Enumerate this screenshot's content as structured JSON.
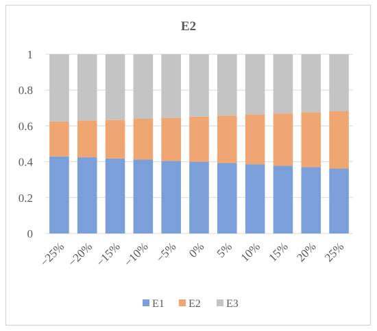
{
  "chart_data": {
    "type": "bar",
    "stacked": true,
    "title": "E2",
    "categories": [
      "−25%",
      "−20%",
      "−15%",
      "−10%",
      "−5%",
      "0%",
      "5%",
      "10%",
      "15%",
      "20%",
      "25%"
    ],
    "series": [
      {
        "name": "E1",
        "color": "#7b9fd8",
        "values": [
          0.43,
          0.425,
          0.418,
          0.412,
          0.405,
          0.4,
          0.393,
          0.386,
          0.378,
          0.37,
          0.362
        ]
      },
      {
        "name": "E2",
        "color": "#f0a673",
        "values": [
          0.195,
          0.205,
          0.215,
          0.228,
          0.24,
          0.252,
          0.265,
          0.278,
          0.292,
          0.306,
          0.32
        ]
      },
      {
        "name": "E3",
        "color": "#c4c4c4",
        "values": [
          0.375,
          0.37,
          0.367,
          0.36,
          0.355,
          0.348,
          0.342,
          0.336,
          0.33,
          0.324,
          0.318
        ]
      }
    ],
    "ylim": [
      0,
      1
    ],
    "yticks": [
      "0",
      "0.2",
      "0.4",
      "0.6",
      "0.8",
      "1"
    ],
    "ytick_values": [
      0,
      0.2,
      0.4,
      0.6,
      0.8,
      1
    ],
    "grid": true,
    "legend": "bottom"
  }
}
